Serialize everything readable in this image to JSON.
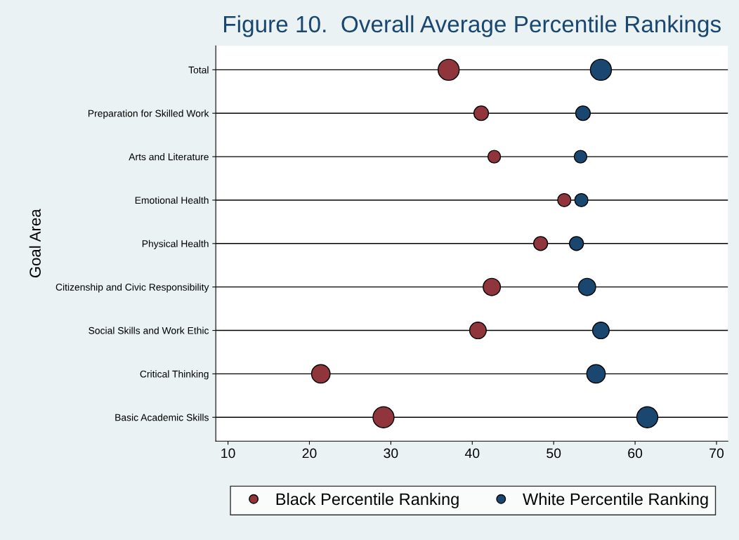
{
  "chart_data": {
    "type": "bubble",
    "orientation": "horizontal",
    "title": "Figure 10.  Overall Average Percentile Rankings",
    "ylabel": "Goal Area",
    "categories": [
      "Total",
      "Preparation for Skilled Work",
      "Arts and Literature",
      "Emotional Health",
      "Physical Health",
      "Citizenship and Civic Responsibility",
      "Social Skills and Work Ethic",
      "Critical Thinking",
      "Basic Academic Skills"
    ],
    "series": [
      {
        "name": "Black Percentile Ranking",
        "color": "#90353b",
        "values": [
          37.1,
          41.1,
          42.7,
          51.3,
          48.4,
          42.4,
          40.7,
          21.4,
          29.1
        ],
        "sizes": [
          1,
          0.48,
          0.36,
          0.39,
          0.44,
          0.67,
          0.62,
          0.77,
          1
        ]
      },
      {
        "name": "White Percentile Ranking",
        "color": "#1a476f",
        "values": [
          55.8,
          53.6,
          53.3,
          53.4,
          52.8,
          54.1,
          55.8,
          55.2,
          61.5
        ],
        "sizes": [
          1,
          0.48,
          0.36,
          0.39,
          0.44,
          0.67,
          0.62,
          0.77,
          1
        ]
      }
    ],
    "xlim": [
      8.5,
      71.4
    ],
    "xticks": [
      10,
      20,
      30,
      40,
      50,
      60,
      70
    ],
    "grid": "y",
    "legend": "bottom"
  }
}
